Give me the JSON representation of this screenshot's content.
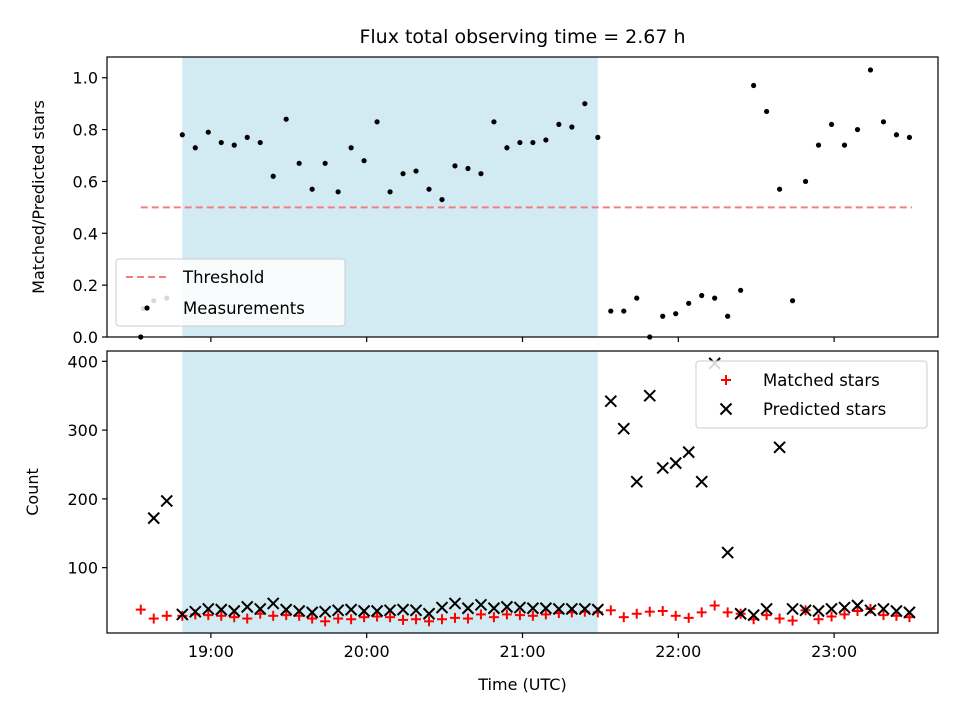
{
  "chart_data": [
    {
      "type": "scatter",
      "title": "Flux total observing time = 2.67 h",
      "xlabel": "",
      "ylabel": "Matched/Predicted stars",
      "xlim": [
        "18:20",
        "23:40"
      ],
      "ylim": [
        0,
        1.08
      ],
      "yticks": [
        "0.0",
        "0.2",
        "0.4",
        "0.6",
        "0.8",
        "1.0"
      ],
      "xticks": [
        "19:00",
        "20:00",
        "21:00",
        "22:00",
        "23:00"
      ],
      "grid": false,
      "legend_position": "lower-left",
      "shaded_region": {
        "start": "18:49",
        "end": "21:29",
        "color": "#add8e6"
      },
      "series": [
        {
          "name": "Threshold",
          "style": "dashed-line",
          "color": "#f08080",
          "x": [
            "18:33",
            "23:30"
          ],
          "y": [
            0.5,
            0.5
          ]
        },
        {
          "name": "Measurements",
          "style": "dots",
          "color": "#000000",
          "x": [
            "18:33",
            "18:34",
            "18:38",
            "18:43",
            "18:49",
            "18:54",
            "18:59",
            "19:04",
            "19:09",
            "19:14",
            "19:19",
            "19:24",
            "19:29",
            "19:34",
            "19:39",
            "19:44",
            "19:49",
            "19:54",
            "19:59",
            "20:04",
            "20:09",
            "20:14",
            "20:19",
            "20:24",
            "20:29",
            "20:34",
            "20:39",
            "20:44",
            "20:49",
            "20:54",
            "20:59",
            "21:04",
            "21:09",
            "21:14",
            "21:19",
            "21:24",
            "21:29",
            "21:34",
            "21:39",
            "21:44",
            "21:49",
            "21:54",
            "21:59",
            "22:04",
            "22:09",
            "22:14",
            "22:19",
            "22:24",
            "22:29",
            "22:34",
            "22:39",
            "22:44",
            "22:49",
            "22:54",
            "22:59",
            "23:04",
            "23:09",
            "23:14",
            "23:19",
            "23:24",
            "23:29"
          ],
          "y": [
            0.0,
            0.11,
            0.14,
            0.15,
            0.78,
            0.73,
            0.79,
            0.75,
            0.74,
            0.77,
            0.75,
            0.62,
            0.84,
            0.67,
            0.57,
            0.67,
            0.56,
            0.73,
            0.68,
            0.83,
            0.56,
            0.63,
            0.64,
            0.57,
            0.53,
            0.66,
            0.65,
            0.63,
            0.83,
            0.73,
            0.75,
            0.75,
            0.76,
            0.82,
            0.81,
            0.9,
            0.77,
            0.1,
            0.1,
            0.15,
            0.0,
            0.08,
            0.09,
            0.13,
            0.16,
            0.15,
            0.08,
            0.18,
            0.97,
            0.87,
            0.57,
            0.14,
            0.6,
            0.74,
            0.82,
            0.74,
            0.8,
            1.03,
            0.83,
            0.78,
            0.77
          ]
        }
      ]
    },
    {
      "type": "scatter",
      "title": "",
      "xlabel": "Time (UTC)",
      "ylabel": "Count",
      "xlim": [
        "18:20",
        "23:40"
      ],
      "ylim": [
        5,
        415
      ],
      "yticks": [
        "100",
        "200",
        "300",
        "400"
      ],
      "xticks": [
        "19:00",
        "20:00",
        "21:00",
        "22:00",
        "23:00"
      ],
      "grid": false,
      "legend_position": "upper-right",
      "shaded_region": {
        "start": "18:49",
        "end": "21:29",
        "color": "#add8e6"
      },
      "series": [
        {
          "name": "Matched stars",
          "marker": "plus",
          "color": "#ff0000",
          "x": [
            "18:33",
            "18:38",
            "18:43",
            "18:49",
            "18:54",
            "18:59",
            "19:04",
            "19:09",
            "19:14",
            "19:19",
            "19:24",
            "19:29",
            "19:34",
            "19:39",
            "19:44",
            "19:49",
            "19:54",
            "19:59",
            "20:04",
            "20:09",
            "20:14",
            "20:19",
            "20:24",
            "20:29",
            "20:34",
            "20:39",
            "20:44",
            "20:49",
            "20:54",
            "20:59",
            "21:04",
            "21:09",
            "21:14",
            "21:19",
            "21:24",
            "21:29",
            "21:34",
            "21:39",
            "21:44",
            "21:49",
            "21:54",
            "21:59",
            "22:04",
            "22:09",
            "22:14",
            "22:19",
            "22:24",
            "22:29",
            "22:34",
            "22:39",
            "22:44",
            "22:49",
            "22:54",
            "22:59",
            "23:04",
            "23:09",
            "23:14",
            "23:19",
            "23:24",
            "23:29"
          ],
          "y": [
            39,
            26,
            30,
            30,
            32,
            31,
            30,
            28,
            26,
            33,
            30,
            31,
            30,
            26,
            22,
            26,
            25,
            28,
            29,
            28,
            24,
            25,
            22,
            25,
            27,
            26,
            32,
            28,
            32,
            31,
            30,
            32,
            34,
            35,
            36,
            35,
            38,
            28,
            33,
            36,
            37,
            30,
            27,
            35,
            45,
            35,
            33,
            25,
            31,
            26,
            23,
            38,
            25,
            29,
            32,
            37,
            40,
            31,
            30,
            28
          ]
        },
        {
          "name": "Predicted stars",
          "marker": "x",
          "color": "#000000",
          "x": [
            "18:38",
            "18:43",
            "18:49",
            "18:54",
            "18:59",
            "19:04",
            "19:09",
            "19:14",
            "19:19",
            "19:24",
            "19:29",
            "19:34",
            "19:39",
            "19:44",
            "19:49",
            "19:54",
            "19:59",
            "20:04",
            "20:09",
            "20:14",
            "20:19",
            "20:24",
            "20:29",
            "20:34",
            "20:39",
            "20:44",
            "20:49",
            "20:54",
            "20:59",
            "21:04",
            "21:09",
            "21:14",
            "21:19",
            "21:24",
            "21:29",
            "21:34",
            "21:39",
            "21:44",
            "21:49",
            "21:54",
            "21:59",
            "22:04",
            "22:09",
            "22:14",
            "22:19",
            "22:24",
            "22:29",
            "22:34",
            "22:39",
            "22:44",
            "22:49",
            "22:54",
            "22:59",
            "23:04",
            "23:09",
            "23:14",
            "23:19",
            "23:24",
            "23:29"
          ],
          "y": [
            172,
            197,
            32,
            36,
            40,
            39,
            37,
            43,
            40,
            48,
            39,
            37,
            35,
            36,
            38,
            39,
            37,
            37,
            38,
            39,
            38,
            33,
            42,
            48,
            41,
            46,
            41,
            43,
            42,
            41,
            41,
            40,
            40,
            40,
            39,
            342,
            302,
            225,
            350,
            245,
            252,
            268,
            225,
            397,
            122,
            33,
            31,
            40,
            275,
            40,
            38,
            37,
            40,
            42,
            45,
            38,
            40,
            37,
            35
          ]
        }
      ]
    }
  ]
}
